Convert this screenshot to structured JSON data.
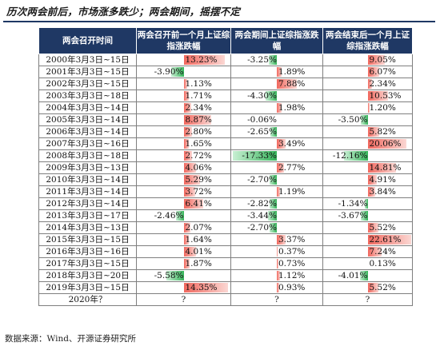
{
  "title": "历次两会前后，市场涨多跌少；两会期间，摇摆不定",
  "headers": [
    "两会召开时间",
    "两会召开前一个月上证综指涨跌幅",
    "两会期间上证综指涨跌幅",
    "两会结束后一个月上证综指涨跌幅"
  ],
  "rows": [
    {
      "date": "2000年3月3日~15日",
      "v": [
        13.23,
        -3.25,
        9.05
      ]
    },
    {
      "date": "2001年3月3日~15日",
      "v": [
        -3.9,
        1.89,
        6.07
      ]
    },
    {
      "date": "2002年3月3日~15日",
      "v": [
        1.13,
        7.88,
        2.34
      ]
    },
    {
      "date": "2003年3月3日~18日",
      "v": [
        1.71,
        -4.3,
        10.53
      ]
    },
    {
      "date": "2004年3月3日~14日",
      "v": [
        2.34,
        1.98,
        1.2
      ]
    },
    {
      "date": "2005年3月3日~14日",
      "v": [
        8.87,
        -0.06,
        -3.5
      ]
    },
    {
      "date": "2006年3月3日~14日",
      "v": [
        2.8,
        -2.65,
        5.82
      ]
    },
    {
      "date": "2007年3月3日~16日",
      "v": [
        1.65,
        3.49,
        20.06
      ]
    },
    {
      "date": "2008年3月3日~18日",
      "v": [
        2.72,
        -17.33,
        -12.16
      ]
    },
    {
      "date": "2009年3月3日~13日",
      "v": [
        4.06,
        2.77,
        14.81
      ]
    },
    {
      "date": "2010年3月3日~14日",
      "v": [
        5.29,
        -2.7,
        4.91
      ]
    },
    {
      "date": "2011年3月3日~14日",
      "v": [
        3.72,
        1.19,
        3.84
      ]
    },
    {
      "date": "2012年3月3日~14日",
      "v": [
        6.41,
        -2.82,
        -1.34
      ]
    },
    {
      "date": "2013年3月3日~17日",
      "v": [
        -2.46,
        -3.44,
        -3.67
      ]
    },
    {
      "date": "2014年3月3日~13日",
      "v": [
        2.07,
        -2.7,
        5.52
      ]
    },
    {
      "date": "2015年3月3日~15日",
      "v": [
        1.64,
        3.37,
        22.61
      ]
    },
    {
      "date": "2016年3月3日~16日",
      "v": [
        4.01,
        0.37,
        7.24
      ]
    },
    {
      "date": "2017年3月3日~15日",
      "v": [
        1.87,
        0.73,
        0.13
      ]
    },
    {
      "date": "2018年3月3日~20日",
      "v": [
        -5.58,
        1.12,
        -4.01
      ]
    },
    {
      "date": "2019年3月3日~15日",
      "v": [
        14.35,
        0.93,
        5.52
      ]
    },
    {
      "date": "2020年？",
      "v": [
        "?",
        "?",
        "?"
      ]
    }
  ],
  "source": "数据来源：Wind、开源证券研究所",
  "colors": {
    "header_bg": "#1f3864",
    "positive_bar": "#f1685e",
    "negative_bar": "#36b45a"
  }
}
